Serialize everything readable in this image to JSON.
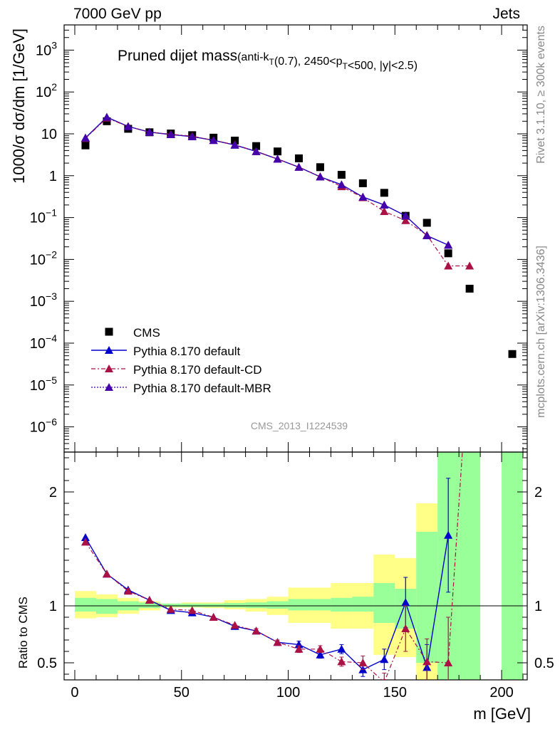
{
  "header": {
    "left": "7000 GeV pp",
    "right": "Jets"
  },
  "side_labels": {
    "rivet": "Rivet 3.1.10, ≥ 300k events",
    "mcplots": "mcplots.cern.ch [arXiv:1306.3436]"
  },
  "watermark": "CMS_2013_I1224539",
  "chart_data": {
    "type": "scatter",
    "title": "Pruned dijet mass",
    "title_note": "(anti-k_T(0.7), 2450<p_T<500, |y|<2.5)",
    "xlabel": "m [GeV]",
    "xlim": [
      -5,
      212
    ],
    "x_ticks": [
      "0",
      "50",
      "100",
      "150",
      "200"
    ],
    "main": {
      "ylabel": "1000/σ dσ/dm [1/GeV]",
      "yscale": "log",
      "ylim": [
        2.5e-07,
        4000
      ],
      "y_ticks": [
        "10",
        "1",
        "10^3",
        "10^2",
        "10^-1",
        "10^-2",
        "10^-3",
        "10^-4",
        "10^-5",
        "10^-6"
      ]
    },
    "ratio": {
      "ylabel": "Ratio to CMS",
      "ylim": [
        0.35,
        2.35
      ],
      "y_ticks": [
        "0.5",
        "1",
        "2"
      ]
    },
    "legend": {
      "placement": "bottom-left",
      "entries": [
        "CMS",
        "Pythia 8.170 default",
        "Pythia 8.170 default-CD",
        "Pythia 8.170 default-MBR"
      ]
    },
    "series": [
      {
        "name": "CMS",
        "color": "#000000",
        "x": [
          5,
          15,
          25,
          35,
          45,
          55,
          65,
          75,
          85,
          95,
          105,
          115,
          125,
          135,
          145,
          155,
          165,
          175,
          185,
          205
        ],
        "y": [
          5.3,
          20,
          13.2,
          10.9,
          10.2,
          9.3,
          8.1,
          6.9,
          5.1,
          3.8,
          2.6,
          1.6,
          1.05,
          0.66,
          0.39,
          0.11,
          0.075,
          0.014,
          0.002,
          5.5e-05
        ]
      },
      {
        "name": "Pythia 8.170 default",
        "color": "#0000cc",
        "x": [
          5,
          15,
          25,
          35,
          45,
          55,
          65,
          75,
          85,
          95,
          105,
          115,
          125,
          135,
          145,
          155,
          165,
          175
        ],
        "y": [
          8.0,
          25,
          15,
          11,
          9.6,
          8.6,
          7.0,
          5.4,
          3.8,
          2.5,
          1.6,
          0.94,
          0.61,
          0.31,
          0.2,
          0.11,
          0.037,
          0.022
        ],
        "ratio": [
          1.6,
          1.28,
          1.14,
          1.05,
          0.96,
          0.94,
          0.9,
          0.82,
          0.78,
          0.68,
          0.66,
          0.57,
          0.62,
          0.44,
          0.53,
          1.03,
          0.46,
          1.62
        ],
        "ratio_err": [
          0,
          0,
          0,
          0,
          0,
          0,
          0,
          0,
          0.02,
          0.02,
          0.03,
          0.03,
          0.04,
          0.06,
          0.09,
          0.22,
          0.2,
          0.5
        ]
      },
      {
        "name": "Pythia 8.170 default-CD",
        "color": "#aa1144",
        "x": [
          5,
          15,
          25,
          35,
          45,
          55,
          65,
          75,
          85,
          95,
          105,
          115,
          125,
          135,
          145,
          155,
          165,
          175,
          185
        ],
        "y": [
          7.8,
          24,
          15,
          11,
          9.8,
          8.8,
          7.0,
          5.5,
          3.8,
          2.5,
          1.6,
          0.95,
          0.55,
          0.3,
          0.14,
          0.085,
          0.038,
          0.007,
          0.007
        ],
        "ratio": [
          1.56,
          1.28,
          1.13,
          1.05,
          0.97,
          0.96,
          0.9,
          0.83,
          0.78,
          0.68,
          0.62,
          0.62,
          0.51,
          0.5,
          0.33,
          0.8,
          0.51,
          0.5,
          3.3
        ],
        "ratio_err": [
          0,
          0,
          0,
          0,
          0,
          0,
          0,
          0,
          0.02,
          0.02,
          0.03,
          0.03,
          0.04,
          0.06,
          0.08,
          0.2,
          0.2,
          0.4,
          0
        ]
      },
      {
        "name": "Pythia 8.170 default-MBR",
        "color": "#4400aa",
        "x": [
          5,
          15,
          25,
          35,
          45,
          55,
          65,
          75,
          85,
          95,
          105,
          115,
          125,
          135,
          145,
          155,
          165,
          175
        ],
        "y": [
          8.0,
          25,
          15,
          11,
          9.6,
          8.6,
          7.0,
          5.4,
          3.8,
          2.5,
          1.6,
          0.94,
          0.61,
          0.31,
          0.2,
          0.11,
          0.037,
          0.022
        ]
      }
    ],
    "uncertainty_bands": {
      "x_edges": [
        0,
        10,
        20,
        30,
        40,
        50,
        60,
        70,
        80,
        90,
        100,
        110,
        120,
        130,
        140,
        150,
        160,
        170,
        180,
        190,
        200,
        210
      ],
      "green_lo": [
        0.95,
        0.93,
        0.96,
        0.98,
        0.99,
        0.99,
        0.99,
        0.985,
        0.98,
        0.975,
        0.96,
        0.96,
        0.95,
        0.95,
        0.85,
        0.8,
        0.5,
        0.3,
        0.3,
        null,
        0.3
      ],
      "green_hi": [
        1.07,
        1.06,
        1.04,
        1.03,
        1.02,
        1.02,
        1.02,
        1.025,
        1.03,
        1.04,
        1.06,
        1.06,
        1.07,
        1.08,
        1.2,
        1.15,
        1.65,
        2.4,
        2.4,
        null,
        2.4
      ],
      "yellow_lo": [
        0.89,
        0.9,
        0.93,
        0.96,
        0.985,
        0.985,
        0.98,
        0.97,
        0.95,
        0.92,
        0.85,
        0.85,
        0.8,
        0.8,
        0.57,
        0.55,
        0.3,
        0.3,
        null,
        null,
        null
      ],
      "yellow_hi": [
        1.13,
        1.1,
        1.07,
        1.04,
        1.02,
        1.03,
        1.03,
        1.05,
        1.06,
        1.08,
        1.16,
        1.16,
        1.2,
        1.2,
        1.45,
        1.42,
        1.9,
        2.1,
        null,
        null,
        null
      ]
    }
  }
}
